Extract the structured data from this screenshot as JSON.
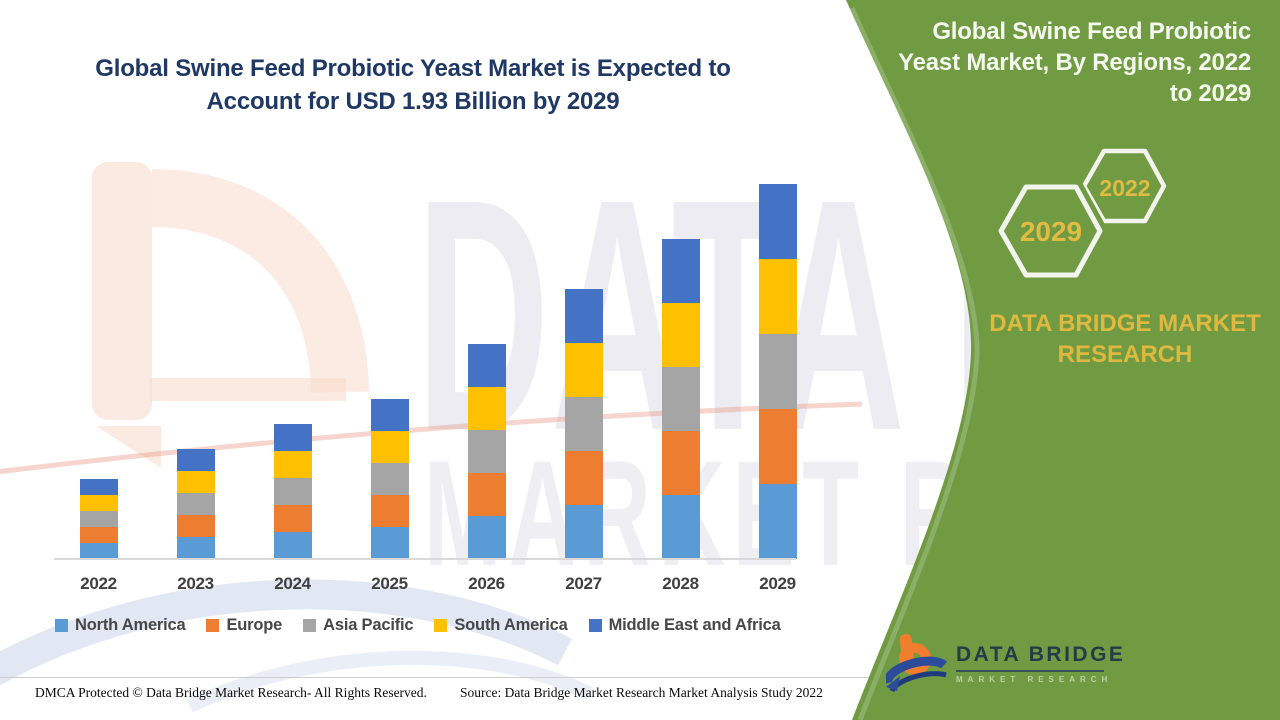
{
  "header": {
    "title": "Global Swine Feed Probiotic Yeast Market is Expected to Account for USD 1.93 Billion by 2029",
    "title_lines": [
      "Global Swine Feed Probiotic Yeast Market is Expected to",
      "Account for USD 1.93 Billion by 2029"
    ],
    "title_color": "#1F3864"
  },
  "green_panel": {
    "background_color": "#709B42",
    "title": "Global Swine Feed Probiotic Yeast Market, By Regions, 2022 to 2029",
    "title_lines": [
      "Global Swine Feed Probiotic",
      "Yeast Market, By Regions, 2022",
      "to 2029"
    ],
    "hexagons": [
      {
        "year": "2029"
      },
      {
        "year": "2022"
      }
    ],
    "brand_line1": "DATA BRIDGE MARKET",
    "brand_line2": "RESEARCH",
    "gold_color": "#DFB93F"
  },
  "logo": {
    "name": "DATA BRIDGE",
    "sub": "MARKET RESEARCH"
  },
  "watermark": {
    "line1": "DATA BRIDGE",
    "line2": "MARKET RESEARCH"
  },
  "footer": {
    "dmca": "DMCA Protected © Data Bridge Market Research- All Rights Reserved.",
    "source": "Source: Data Bridge Market Research Market Analysis Study 2022"
  },
  "chart_data": {
    "type": "bar",
    "stacked": true,
    "title": "Global Swine Feed Probiotic Yeast Market, By Regions, 2022 to 2029",
    "unit": "USD billion",
    "values_estimated_from_pixels": true,
    "categories": [
      "2022",
      "2023",
      "2024",
      "2025",
      "2026",
      "2027",
      "2028",
      "2029"
    ],
    "series": [
      {
        "name": "North America",
        "color": "#5B9BD5",
        "values": [
          0.082,
          0.111,
          0.139,
          0.165,
          0.221,
          0.275,
          0.33,
          0.386
        ]
      },
      {
        "name": "Europe",
        "color": "#ED7D31",
        "values": [
          0.082,
          0.111,
          0.139,
          0.165,
          0.221,
          0.275,
          0.33,
          0.386
        ]
      },
      {
        "name": "Asia Pacific",
        "color": "#A5A5A5",
        "values": [
          0.082,
          0.111,
          0.139,
          0.165,
          0.221,
          0.275,
          0.33,
          0.386
        ]
      },
      {
        "name": "South America",
        "color": "#FFC000",
        "values": [
          0.082,
          0.111,
          0.139,
          0.165,
          0.221,
          0.275,
          0.33,
          0.386
        ]
      },
      {
        "name": "Middle East and Africa",
        "color": "#4472C4",
        "values": [
          0.082,
          0.111,
          0.139,
          0.165,
          0.221,
          0.275,
          0.33,
          0.386
        ]
      }
    ],
    "totals": [
      0.41,
      0.55,
      0.69,
      0.83,
      1.1,
      1.38,
      1.65,
      1.93
    ],
    "xlabel": "",
    "ylabel": "",
    "ylim": [
      0,
      2.0
    ],
    "y_axis_labels_visible": false,
    "grid": false,
    "legend_position": "bottom"
  }
}
